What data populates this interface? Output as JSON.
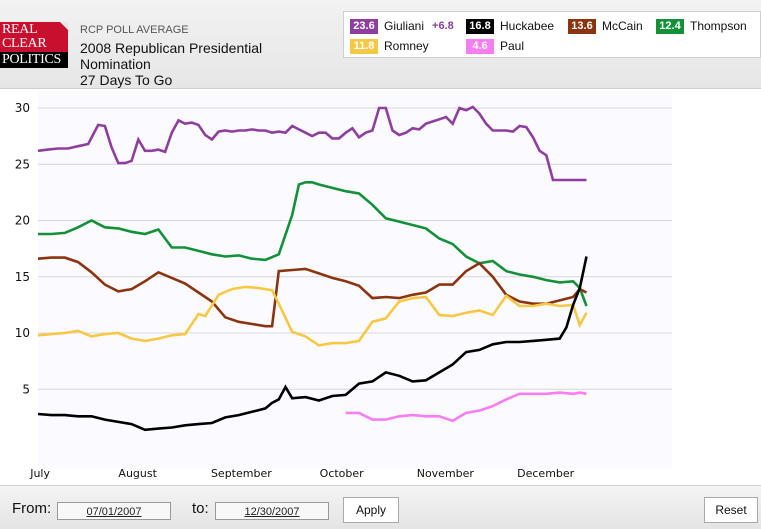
{
  "header": {
    "logo": [
      "REAL",
      "CLEAR",
      "POLITICS"
    ],
    "supertitle": "RCP POLL AVERAGE",
    "title_line1": "2008 Republican Presidential",
    "title_line2": "Nomination",
    "title_line3": "27 Days To Go"
  },
  "legend": [
    {
      "value": "23.6",
      "name": "Giuliani",
      "change": "+6.8",
      "color": "#8e3f9e"
    },
    {
      "value": "16.8",
      "name": "Huckabee",
      "color": "#000000"
    },
    {
      "value": "13.6",
      "name": "McCain",
      "color": "#8b3410"
    },
    {
      "value": "12.4",
      "name": "Thompson",
      "color": "#129139"
    },
    {
      "value": "11.8",
      "name": "Romney",
      "color": "#f7c844"
    },
    {
      "value": "4.6",
      "name": "Paul",
      "color": "#f77ef2"
    }
  ],
  "footer": {
    "from_label": "From:",
    "from_value": "07/01/2007",
    "to_label": "to:",
    "to_value": "12/30/2007",
    "apply_label": "Apply",
    "reset_label": "Reset"
  },
  "chart_data": {
    "type": "line",
    "title": "2008 Republican Presidential Nomination - RCP Poll Average",
    "xlabel": "",
    "ylabel": "",
    "x_unit": "days since 2007-07-01",
    "xlim": [
      0,
      183
    ],
    "ylim": [
      0,
      31
    ],
    "yticks": [
      5,
      10,
      15,
      20,
      25,
      30
    ],
    "xticks": [
      {
        "day": 0,
        "label": "July"
      },
      {
        "day": 31,
        "label": "August"
      },
      {
        "day": 62,
        "label": "September"
      },
      {
        "day": 92,
        "label": "October"
      },
      {
        "day": 123,
        "label": "November"
      },
      {
        "day": 153,
        "label": "December"
      }
    ],
    "grid": true,
    "legend_position": "top-right",
    "series": [
      {
        "name": "Giuliani",
        "color": "#8e3f9e",
        "x": [
          0,
          3,
          6,
          9,
          12,
          15,
          18,
          20,
          22,
          24,
          26,
          28,
          30,
          32,
          34,
          36,
          38,
          40,
          42,
          44,
          46,
          48,
          50,
          52,
          54,
          56,
          58,
          60,
          62,
          64,
          66,
          68,
          70,
          72,
          74,
          76,
          78,
          80,
          82,
          84,
          86,
          88,
          90,
          92,
          94,
          96,
          98,
          100,
          102,
          104,
          106,
          108,
          110,
          112,
          114,
          116,
          118,
          120,
          122,
          124,
          126,
          128,
          130,
          132,
          134,
          136,
          138,
          140,
          142,
          144,
          146,
          148,
          150,
          152,
          154,
          156,
          158,
          160,
          162,
          163,
          164
        ],
        "y": [
          26.2,
          26.3,
          26.4,
          26.4,
          26.6,
          26.8,
          28.5,
          28.4,
          26.5,
          25.1,
          25.1,
          25.3,
          27.2,
          26.2,
          26.2,
          26.3,
          26.1,
          27.8,
          28.9,
          28.6,
          28.7,
          28.5,
          27.6,
          27.2,
          27.9,
          28.0,
          27.9,
          28.0,
          28.0,
          28.1,
          28.0,
          28.0,
          27.8,
          27.9,
          27.8,
          28.4,
          28.1,
          27.8,
          27.5,
          27.8,
          27.8,
          27.3,
          27.3,
          27.8,
          28.2,
          27.4,
          27.8,
          28.0,
          30.0,
          30.0,
          28.0,
          27.6,
          27.8,
          28.2,
          28.1,
          28.6,
          28.8,
          29.0,
          29.2,
          28.6,
          30.0,
          29.8,
          30.1,
          29.5,
          28.6,
          28.0,
          28.0,
          28.0,
          27.9,
          28.4,
          28.3,
          27.4,
          26.2,
          25.8,
          23.6,
          23.6,
          23.6,
          23.6,
          23.6,
          23.6,
          23.6
        ]
      },
      {
        "name": "Thompson",
        "color": "#129139",
        "x": [
          0,
          4,
          8,
          12,
          16,
          20,
          24,
          28,
          32,
          36,
          40,
          44,
          48,
          52,
          56,
          60,
          64,
          68,
          72,
          76,
          78,
          80,
          82,
          84,
          88,
          92,
          96,
          100,
          104,
          108,
          112,
          116,
          120,
          124,
          128,
          132,
          136,
          140,
          144,
          148,
          152,
          156,
          160,
          162,
          164
        ],
        "y": [
          18.8,
          18.8,
          18.9,
          19.4,
          20.0,
          19.4,
          19.3,
          19.0,
          18.8,
          19.2,
          17.6,
          17.6,
          17.3,
          17.0,
          16.8,
          16.9,
          16.6,
          16.5,
          17.0,
          20.5,
          23.2,
          23.4,
          23.4,
          23.2,
          22.9,
          22.6,
          22.4,
          21.4,
          20.2,
          19.9,
          19.6,
          19.3,
          18.4,
          17.9,
          16.8,
          16.2,
          16.4,
          15.5,
          15.2,
          15.0,
          14.7,
          14.5,
          14.6,
          14.0,
          12.4
        ]
      },
      {
        "name": "McCain",
        "color": "#8b3410",
        "x": [
          0,
          4,
          8,
          12,
          16,
          20,
          24,
          28,
          32,
          36,
          40,
          44,
          48,
          52,
          56,
          60,
          64,
          68,
          70,
          72,
          76,
          80,
          84,
          88,
          92,
          96,
          100,
          104,
          108,
          112,
          116,
          120,
          124,
          128,
          132,
          136,
          140,
          144,
          148,
          152,
          156,
          160,
          162,
          164
        ],
        "y": [
          16.6,
          16.7,
          16.7,
          16.3,
          15.4,
          14.3,
          13.7,
          13.9,
          14.6,
          15.4,
          14.9,
          14.4,
          13.6,
          12.8,
          11.4,
          11.0,
          10.8,
          10.6,
          10.6,
          15.5,
          15.6,
          15.7,
          15.3,
          14.9,
          14.6,
          14.2,
          13.1,
          13.2,
          13.1,
          13.4,
          13.6,
          14.3,
          14.3,
          15.5,
          16.2,
          15.0,
          13.4,
          12.8,
          12.6,
          12.6,
          12.9,
          13.2,
          13.9,
          13.6
        ]
      },
      {
        "name": "Romney",
        "color": "#f7c844",
        "x": [
          0,
          4,
          8,
          12,
          16,
          20,
          24,
          28,
          32,
          36,
          40,
          44,
          48,
          50,
          54,
          58,
          62,
          66,
          70,
          72,
          76,
          80,
          84,
          88,
          92,
          96,
          100,
          104,
          108,
          112,
          116,
          120,
          124,
          128,
          132,
          136,
          140,
          144,
          148,
          152,
          156,
          160,
          162,
          164
        ],
        "y": [
          9.8,
          9.9,
          10.0,
          10.2,
          9.7,
          9.9,
          10.0,
          9.5,
          9.3,
          9.5,
          9.8,
          9.9,
          11.7,
          11.5,
          13.4,
          13.9,
          14.1,
          14.0,
          13.8,
          12.6,
          10.1,
          9.7,
          8.9,
          9.1,
          9.1,
          9.3,
          11.0,
          11.3,
          12.8,
          13.1,
          13.2,
          11.6,
          11.5,
          11.8,
          12.0,
          11.6,
          13.3,
          12.4,
          12.4,
          12.6,
          12.4,
          12.5,
          10.7,
          11.8
        ]
      },
      {
        "name": "Huckabee",
        "color": "#000000",
        "x": [
          0,
          4,
          8,
          12,
          16,
          20,
          24,
          28,
          32,
          36,
          40,
          44,
          48,
          52,
          56,
          60,
          64,
          68,
          70,
          72,
          74,
          76,
          80,
          84,
          88,
          92,
          96,
          100,
          104,
          108,
          112,
          116,
          120,
          124,
          128,
          132,
          136,
          140,
          144,
          148,
          152,
          156,
          158,
          160,
          162,
          164
        ],
        "y": [
          2.8,
          2.7,
          2.7,
          2.6,
          2.6,
          2.3,
          2.1,
          1.9,
          1.4,
          1.5,
          1.6,
          1.8,
          1.9,
          2.0,
          2.5,
          2.7,
          3.0,
          3.3,
          3.8,
          4.1,
          5.2,
          4.2,
          4.3,
          4.0,
          4.4,
          4.5,
          5.5,
          5.7,
          6.5,
          6.2,
          5.7,
          5.8,
          6.5,
          7.2,
          8.3,
          8.5,
          9.0,
          9.2,
          9.2,
          9.3,
          9.4,
          9.5,
          10.5,
          12.5,
          14.0,
          16.8
        ]
      },
      {
        "name": "Paul",
        "color": "#f77ef2",
        "x": [
          92,
          96,
          100,
          104,
          108,
          112,
          116,
          120,
          124,
          128,
          132,
          136,
          140,
          144,
          148,
          152,
          156,
          160,
          162,
          164
        ],
        "y": [
          2.9,
          2.9,
          2.3,
          2.3,
          2.6,
          2.7,
          2.6,
          2.6,
          2.2,
          2.9,
          3.1,
          3.5,
          4.1,
          4.6,
          4.6,
          4.6,
          4.7,
          4.6,
          4.7,
          4.6
        ]
      }
    ]
  }
}
